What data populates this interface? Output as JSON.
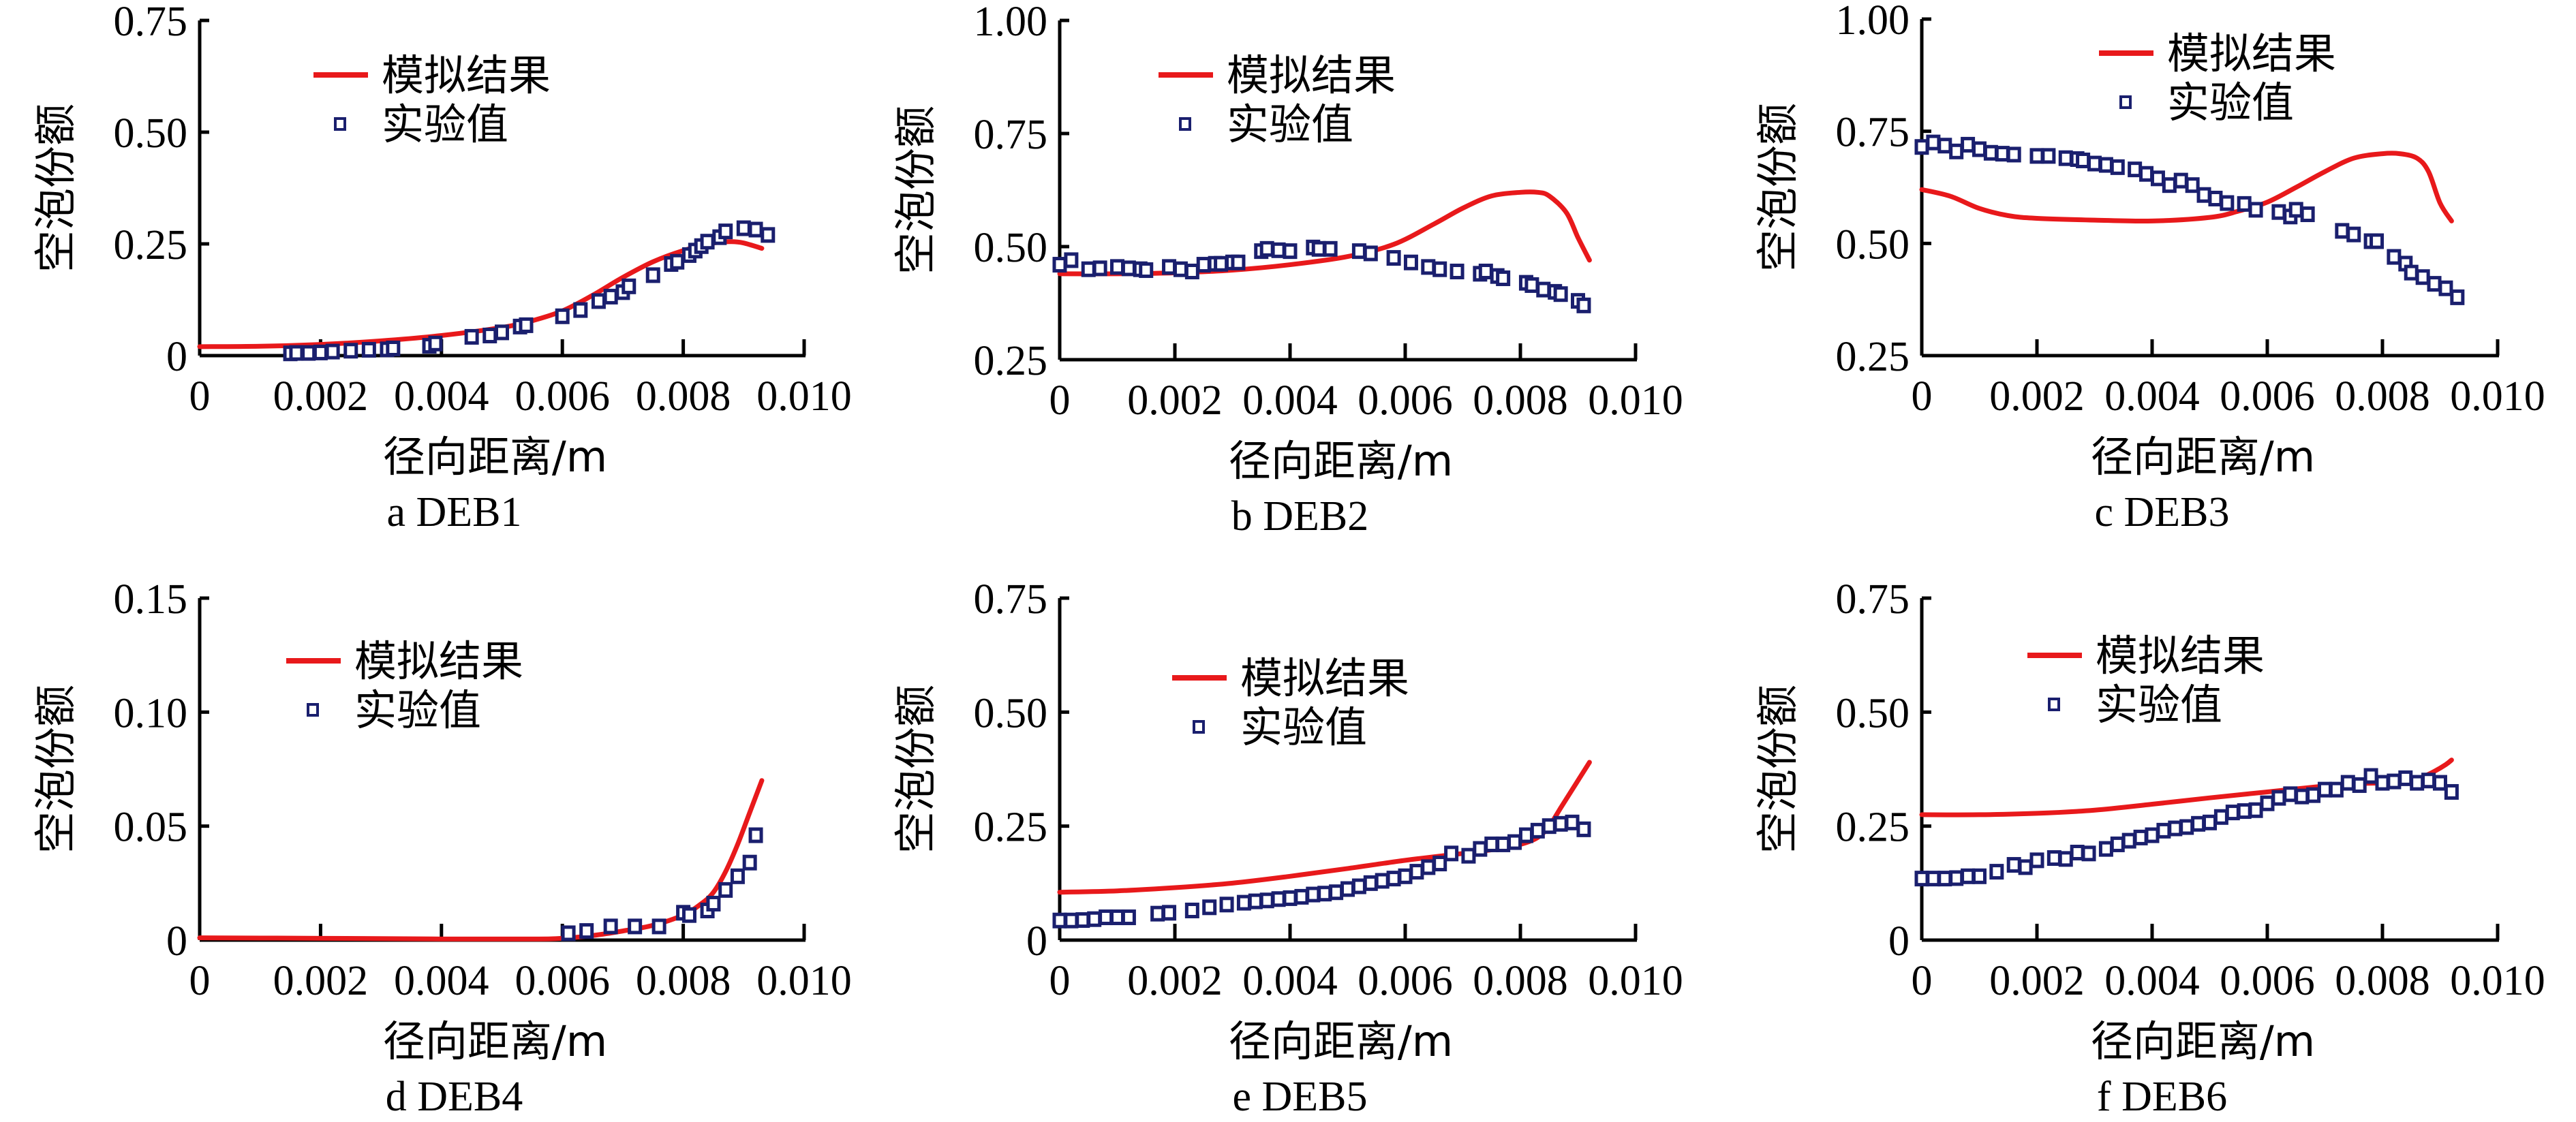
{
  "figure": {
    "colors": {
      "model": "#e8191b",
      "experiment": "#1a1f6e",
      "axis": "#000000"
    }
  },
  "chart_data": [
    {
      "type": "line",
      "panel": "a",
      "caption": "a  DEB1",
      "xlabel": "径向距离/m",
      "ylabel": "空泡份额",
      "xlim": [
        0,
        0.01
      ],
      "ylim": [
        0,
        0.75
      ],
      "xticks": [
        0,
        0.002,
        0.004,
        0.006,
        0.008,
        0.01
      ],
      "xtick_labels": [
        "0",
        "0.002",
        "0.004",
        "0.006",
        "0.008",
        "0.010"
      ],
      "yticks": [
        0,
        0.25,
        0.5,
        0.75
      ],
      "ytick_labels": [
        "0",
        "0.25",
        "0.50",
        "0.75"
      ],
      "legend": {
        "placement": "top-center",
        "entries": [
          "模拟结果",
          "实验值"
        ]
      },
      "series": [
        {
          "name": "模拟结果",
          "kind": "line",
          "x": [
            0,
            0.001,
            0.002,
            0.003,
            0.004,
            0.005,
            0.0055,
            0.006,
            0.0065,
            0.007,
            0.0075,
            0.008,
            0.0085,
            0.0088,
            0.009,
            0.0093
          ],
          "y": [
            0.02,
            0.021,
            0.025,
            0.033,
            0.045,
            0.063,
            0.078,
            0.1,
            0.135,
            0.175,
            0.21,
            0.235,
            0.252,
            0.255,
            0.252,
            0.24
          ]
        },
        {
          "name": "实验值",
          "kind": "scatter",
          "x": [
            0.0015,
            0.0016,
            0.0018,
            0.002,
            0.0022,
            0.0025,
            0.0028,
            0.0031,
            0.0032,
            0.0038,
            0.0039,
            0.0045,
            0.0048,
            0.005,
            0.0053,
            0.0054,
            0.006,
            0.0063,
            0.0066,
            0.0068,
            0.007,
            0.0071,
            0.0075,
            0.0078,
            0.0079,
            0.0081,
            0.0082,
            0.0083,
            0.0084,
            0.0086,
            0.0087,
            0.009,
            0.0092,
            0.0094
          ],
          "y": [
            0.005,
            0.006,
            0.006,
            0.007,
            0.009,
            0.011,
            0.013,
            0.014,
            0.016,
            0.022,
            0.027,
            0.042,
            0.045,
            0.052,
            0.065,
            0.068,
            0.088,
            0.102,
            0.122,
            0.132,
            0.142,
            0.155,
            0.18,
            0.205,
            0.21,
            0.225,
            0.235,
            0.245,
            0.255,
            0.265,
            0.278,
            0.285,
            0.282,
            0.27
          ]
        }
      ]
    },
    {
      "type": "line",
      "panel": "b",
      "caption": "b  DEB2",
      "xlabel": "径向距离/m",
      "ylabel": "空泡份额",
      "xlim": [
        0,
        0.01
      ],
      "ylim": [
        0.25,
        1.0
      ],
      "xticks": [
        0,
        0.002,
        0.004,
        0.006,
        0.008,
        0.01
      ],
      "xtick_labels": [
        "0",
        "0.002",
        "0.004",
        "0.006",
        "0.008",
        "0.010"
      ],
      "yticks": [
        0.25,
        0.5,
        0.75,
        1.0
      ],
      "ytick_labels": [
        "0.25",
        "0.50",
        "0.75",
        "1.00"
      ],
      "legend": {
        "placement": "top-center",
        "entries": [
          "模拟结果",
          "实验值"
        ]
      },
      "series": [
        {
          "name": "模拟结果",
          "kind": "line",
          "x": [
            0,
            0.001,
            0.002,
            0.003,
            0.004,
            0.005,
            0.0058,
            0.0065,
            0.007,
            0.0075,
            0.008,
            0.0083,
            0.0085,
            0.0088,
            0.009,
            0.0092
          ],
          "y": [
            0.44,
            0.44,
            0.442,
            0.448,
            0.46,
            0.478,
            0.505,
            0.55,
            0.585,
            0.612,
            0.62,
            0.62,
            0.612,
            0.575,
            0.52,
            0.47
          ]
        },
        {
          "name": "实验值",
          "kind": "scatter",
          "x": [
            0,
            0.0002,
            0.0005,
            0.0007,
            0.001,
            0.0012,
            0.0014,
            0.0015,
            0.0019,
            0.0021,
            0.0023,
            0.0025,
            0.0027,
            0.0028,
            0.003,
            0.0031,
            0.0035,
            0.0036,
            0.0038,
            0.004,
            0.0044,
            0.0045,
            0.0047,
            0.0052,
            0.0054,
            0.0058,
            0.0061,
            0.0064,
            0.0066,
            0.0069,
            0.0073,
            0.0074,
            0.0076,
            0.0077,
            0.0081,
            0.0082,
            0.0084,
            0.0086,
            0.0087,
            0.009,
            0.0091
          ],
          "y": [
            0.46,
            0.47,
            0.45,
            0.452,
            0.455,
            0.452,
            0.45,
            0.448,
            0.455,
            0.45,
            0.445,
            0.46,
            0.462,
            0.462,
            0.465,
            0.465,
            0.49,
            0.495,
            0.492,
            0.49,
            0.498,
            0.495,
            0.495,
            0.49,
            0.485,
            0.475,
            0.465,
            0.455,
            0.45,
            0.445,
            0.44,
            0.445,
            0.435,
            0.43,
            0.42,
            0.415,
            0.405,
            0.4,
            0.395,
            0.38,
            0.37
          ]
        }
      ]
    },
    {
      "type": "line",
      "panel": "c",
      "caption": "c  DEB3",
      "xlabel": "径向距离/m",
      "ylabel": "空泡份额",
      "xlim": [
        0,
        0.01
      ],
      "ylim": [
        0.25,
        1.0
      ],
      "xticks": [
        0,
        0.002,
        0.004,
        0.006,
        0.008,
        0.01
      ],
      "xtick_labels": [
        "0",
        "0.002",
        "0.004",
        "0.006",
        "0.008",
        "0.010"
      ],
      "yticks": [
        0.25,
        0.5,
        0.75,
        1.0
      ],
      "ytick_labels": [
        "0.25",
        "0.50",
        "0.75",
        "1.00"
      ],
      "legend": {
        "placement": "top-right",
        "entries": [
          "模拟结果",
          "实验值"
        ]
      },
      "series": [
        {
          "name": "模拟结果",
          "kind": "line",
          "x": [
            0,
            0.0005,
            0.001,
            0.0015,
            0.002,
            0.003,
            0.004,
            0.005,
            0.0055,
            0.006,
            0.0065,
            0.007,
            0.0075,
            0.008,
            0.0083,
            0.0086,
            0.0088,
            0.009,
            0.0092
          ],
          "y": [
            0.62,
            0.605,
            0.578,
            0.562,
            0.556,
            0.552,
            0.55,
            0.558,
            0.572,
            0.592,
            0.625,
            0.66,
            0.69,
            0.7,
            0.7,
            0.69,
            0.66,
            0.59,
            0.55
          ]
        },
        {
          "name": "实验值",
          "kind": "scatter",
          "x": [
            0,
            0.0002,
            0.0004,
            0.0006,
            0.0008,
            0.001,
            0.0012,
            0.0014,
            0.0016,
            0.002,
            0.0022,
            0.0025,
            0.0027,
            0.0028,
            0.003,
            0.0032,
            0.0034,
            0.0037,
            0.0039,
            0.0041,
            0.0043,
            0.0045,
            0.0047,
            0.0049,
            0.0051,
            0.0053,
            0.0056,
            0.0058,
            0.0062,
            0.0064,
            0.0065,
            0.0067,
            0.0073,
            0.0075,
            0.0078,
            0.0079,
            0.0082,
            0.0084,
            0.0085,
            0.0087,
            0.0089,
            0.0091,
            0.0093
          ],
          "y": [
            0.715,
            0.725,
            0.718,
            0.705,
            0.72,
            0.71,
            0.702,
            0.7,
            0.698,
            0.695,
            0.695,
            0.69,
            0.688,
            0.685,
            0.678,
            0.675,
            0.67,
            0.665,
            0.655,
            0.645,
            0.63,
            0.64,
            0.63,
            0.608,
            0.6,
            0.59,
            0.588,
            0.575,
            0.57,
            0.56,
            0.575,
            0.565,
            0.528,
            0.52,
            0.505,
            0.505,
            0.47,
            0.455,
            0.435,
            0.425,
            0.41,
            0.4,
            0.38
          ]
        }
      ]
    },
    {
      "type": "line",
      "panel": "d",
      "caption": "d  DEB4",
      "xlabel": "径向距离/m",
      "ylabel": "空泡份额",
      "xlim": [
        0,
        0.01
      ],
      "ylim": [
        0,
        0.15
      ],
      "xticks": [
        0,
        0.002,
        0.004,
        0.006,
        0.008,
        0.01
      ],
      "xtick_labels": [
        "0",
        "0.002",
        "0.004",
        "0.006",
        "0.008",
        "0.010"
      ],
      "yticks": [
        0,
        0.05,
        0.1,
        0.15
      ],
      "ytick_labels": [
        "0",
        "0.05",
        "0.10",
        "0.15"
      ],
      "legend": {
        "placement": "top-center",
        "entries": [
          "模拟结果",
          "实验值"
        ]
      },
      "series": [
        {
          "name": "模拟结果",
          "kind": "line",
          "x": [
            0,
            0.002,
            0.004,
            0.0055,
            0.006,
            0.0065,
            0.007,
            0.0075,
            0.008,
            0.0083,
            0.0085,
            0.0087,
            0.0089,
            0.0091,
            0.0093
          ],
          "y": [
            0.001,
            0.0008,
            0.0005,
            0.0005,
            0.0008,
            0.002,
            0.004,
            0.0065,
            0.011,
            0.016,
            0.021,
            0.03,
            0.042,
            0.056,
            0.07
          ]
        },
        {
          "name": "实验值",
          "kind": "scatter",
          "x": [
            0.0061,
            0.0064,
            0.0068,
            0.0072,
            0.0076,
            0.008,
            0.0081,
            0.0084,
            0.0085,
            0.0087,
            0.0089,
            0.0091,
            0.0092
          ],
          "y": [
            0.003,
            0.004,
            0.006,
            0.006,
            0.006,
            0.012,
            0.011,
            0.013,
            0.016,
            0.022,
            0.028,
            0.034,
            0.046
          ]
        }
      ]
    },
    {
      "type": "line",
      "panel": "e",
      "caption": "e  DEB5",
      "xlabel": "径向距离/m",
      "ylabel": "空泡份额",
      "xlim": [
        0,
        0.01
      ],
      "ylim": [
        0,
        0.75
      ],
      "xticks": [
        0,
        0.002,
        0.004,
        0.006,
        0.008,
        0.01
      ],
      "xtick_labels": [
        "0",
        "0.002",
        "0.004",
        "0.006",
        "0.008",
        "0.010"
      ],
      "yticks": [
        0,
        0.25,
        0.5,
        0.75
      ],
      "ytick_labels": [
        "0",
        "0.25",
        "0.50",
        "0.75"
      ],
      "legend": {
        "placement": "top-center",
        "entries": [
          "模拟结果",
          "实验值"
        ]
      },
      "series": [
        {
          "name": "模拟结果",
          "kind": "line",
          "x": [
            0,
            0.001,
            0.002,
            0.003,
            0.004,
            0.005,
            0.006,
            0.007,
            0.0075,
            0.008,
            0.0083,
            0.0085,
            0.0087,
            0.0089,
            0.0091,
            0.0092
          ],
          "y": [
            0.105,
            0.108,
            0.115,
            0.125,
            0.14,
            0.157,
            0.175,
            0.19,
            0.198,
            0.21,
            0.225,
            0.25,
            0.29,
            0.33,
            0.37,
            0.39
          ]
        },
        {
          "name": "实验值",
          "kind": "scatter",
          "x": [
            0,
            0.0002,
            0.0004,
            0.0006,
            0.0008,
            0.001,
            0.0012,
            0.0017,
            0.0019,
            0.0023,
            0.0026,
            0.0029,
            0.0032,
            0.0034,
            0.0036,
            0.0038,
            0.004,
            0.0042,
            0.0044,
            0.0046,
            0.0048,
            0.005,
            0.0052,
            0.0054,
            0.0056,
            0.0058,
            0.006,
            0.0062,
            0.0064,
            0.0066,
            0.0068,
            0.0071,
            0.0073,
            0.0075,
            0.0077,
            0.0079,
            0.0081,
            0.0083,
            0.0085,
            0.0087,
            0.0089,
            0.0091
          ],
          "y": [
            0.043,
            0.043,
            0.044,
            0.046,
            0.05,
            0.05,
            0.05,
            0.058,
            0.06,
            0.065,
            0.072,
            0.078,
            0.082,
            0.085,
            0.087,
            0.09,
            0.092,
            0.095,
            0.1,
            0.102,
            0.105,
            0.112,
            0.118,
            0.125,
            0.13,
            0.135,
            0.14,
            0.15,
            0.16,
            0.168,
            0.19,
            0.185,
            0.2,
            0.21,
            0.21,
            0.215,
            0.23,
            0.24,
            0.25,
            0.255,
            0.258,
            0.243
          ]
        }
      ]
    },
    {
      "type": "line",
      "panel": "f",
      "caption": "f  DEB6",
      "xlabel": "径向距离/m",
      "ylabel": "空泡份额",
      "xlim": [
        0,
        0.01
      ],
      "ylim": [
        0,
        0.75
      ],
      "xticks": [
        0,
        0.002,
        0.004,
        0.006,
        0.008,
        0.01
      ],
      "xtick_labels": [
        "0",
        "0.002",
        "0.004",
        "0.006",
        "0.008",
        "0.010"
      ],
      "yticks": [
        0,
        0.25,
        0.5,
        0.75
      ],
      "ytick_labels": [
        "0",
        "0.25",
        "0.50",
        "0.75"
      ],
      "legend": {
        "placement": "top-center",
        "entries": [
          "模拟结果",
          "实验值"
        ]
      },
      "series": [
        {
          "name": "模拟结果",
          "kind": "line",
          "x": [
            0,
            0.001,
            0.002,
            0.003,
            0.004,
            0.005,
            0.006,
            0.007,
            0.0075,
            0.008,
            0.0085,
            0.0087,
            0.0089,
            0.0091,
            0.0092
          ],
          "y": [
            0.275,
            0.275,
            0.278,
            0.285,
            0.298,
            0.312,
            0.325,
            0.338,
            0.343,
            0.345,
            0.35,
            0.358,
            0.37,
            0.385,
            0.395
          ]
        },
        {
          "name": "实验值",
          "kind": "scatter",
          "x": [
            0,
            0.0002,
            0.0004,
            0.0006,
            0.0008,
            0.001,
            0.0013,
            0.0016,
            0.0018,
            0.002,
            0.0023,
            0.0025,
            0.0027,
            0.0029,
            0.0032,
            0.0034,
            0.0036,
            0.0038,
            0.004,
            0.0042,
            0.0044,
            0.0046,
            0.0048,
            0.005,
            0.0052,
            0.0054,
            0.0056,
            0.0058,
            0.006,
            0.0062,
            0.0064,
            0.0066,
            0.0068,
            0.007,
            0.0072,
            0.0074,
            0.0076,
            0.0078,
            0.008,
            0.0082,
            0.0084,
            0.0086,
            0.0088,
            0.009,
            0.0092
          ],
          "y": [
            0.135,
            0.135,
            0.135,
            0.136,
            0.14,
            0.14,
            0.15,
            0.165,
            0.16,
            0.175,
            0.18,
            0.178,
            0.192,
            0.19,
            0.2,
            0.21,
            0.218,
            0.225,
            0.23,
            0.24,
            0.245,
            0.248,
            0.255,
            0.258,
            0.27,
            0.28,
            0.283,
            0.285,
            0.3,
            0.312,
            0.32,
            0.315,
            0.318,
            0.33,
            0.33,
            0.345,
            0.34,
            0.36,
            0.345,
            0.348,
            0.355,
            0.345,
            0.35,
            0.345,
            0.325
          ]
        }
      ]
    }
  ]
}
